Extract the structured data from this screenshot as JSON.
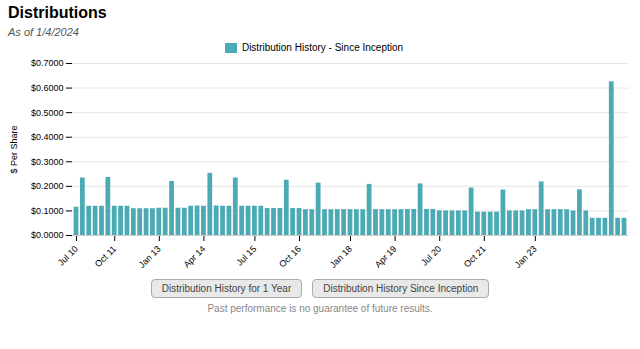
{
  "chart_data": {
    "type": "bar",
    "title": "Distributions",
    "subtitle": "As of 1/4/2024",
    "y_label": "$ Per Share",
    "annotations": [
      "Distribution History for 1 Year",
      "Distribution History Since Inception",
      "Past performance is no guarantee of future results."
    ],
    "categories": [
      "Jul 10",
      null,
      null,
      null,
      null,
      null,
      "Oct 11",
      null,
      null,
      null,
      null,
      null,
      null,
      "Jan 13",
      null,
      null,
      null,
      null,
      null,
      null,
      "Apr 14",
      null,
      null,
      null,
      null,
      null,
      null,
      null,
      "Jul 15",
      null,
      null,
      null,
      null,
      null,
      null,
      "Oct 16",
      null,
      null,
      null,
      null,
      null,
      null,
      null,
      "Jan 18",
      null,
      null,
      null,
      null,
      null,
      null,
      "Apr 19",
      null,
      null,
      null,
      null,
      null,
      null,
      "Jul 20",
      null,
      null,
      null,
      null,
      null,
      null,
      "Oct 21",
      null,
      null,
      null,
      null,
      null,
      null,
      null,
      "Jan 23",
      null,
      null,
      null,
      null,
      null,
      null,
      null,
      null,
      null,
      null,
      null,
      null,
      null,
      null
    ],
    "series": [
      {
        "name": "Distribution History - Since Inception",
        "color": "#4BAAB3",
        "values": [
          0.115,
          0.234,
          0.119,
          0.119,
          0.119,
          0.236,
          0.119,
          0.119,
          0.119,
          0.109,
          0.109,
          0.109,
          0.109,
          0.111,
          0.111,
          0.22,
          0.111,
          0.111,
          0.119,
          0.12,
          0.119,
          0.253,
          0.12,
          0.119,
          0.119,
          0.234,
          0.119,
          0.119,
          0.119,
          0.119,
          0.11,
          0.11,
          0.11,
          0.225,
          0.11,
          0.11,
          0.105,
          0.105,
          0.213,
          0.105,
          0.105,
          0.105,
          0.105,
          0.105,
          0.105,
          0.105,
          0.208,
          0.105,
          0.105,
          0.105,
          0.105,
          0.105,
          0.106,
          0.106,
          0.21,
          0.106,
          0.106,
          0.1,
          0.1,
          0.1,
          0.1,
          0.1,
          0.193,
          0.095,
          0.095,
          0.095,
          0.095,
          0.185,
          0.1,
          0.1,
          0.1,
          0.105,
          0.105,
          0.218,
          0.105,
          0.105,
          0.105,
          0.105,
          0.1,
          0.186,
          0.1,
          0.07,
          0.07,
          0.07,
          0.625,
          0.07,
          0.07
        ]
      }
    ],
    "ylim": [
      0.0,
      0.7
    ],
    "yticks": [
      {
        "value": 0.0,
        "label": "$0.0000"
      },
      {
        "value": 0.1,
        "label": "$0.1000"
      },
      {
        "value": 0.2,
        "label": "$0.2000"
      },
      {
        "value": 0.3,
        "label": "$0.3000"
      },
      {
        "value": 0.4,
        "label": "$0.4000"
      },
      {
        "value": 0.5,
        "label": "$0.5000"
      },
      {
        "value": 0.6,
        "label": "$0.6000"
      },
      {
        "value": 0.7,
        "label": "$0.7000"
      }
    ],
    "grid": true,
    "legend": "top"
  }
}
